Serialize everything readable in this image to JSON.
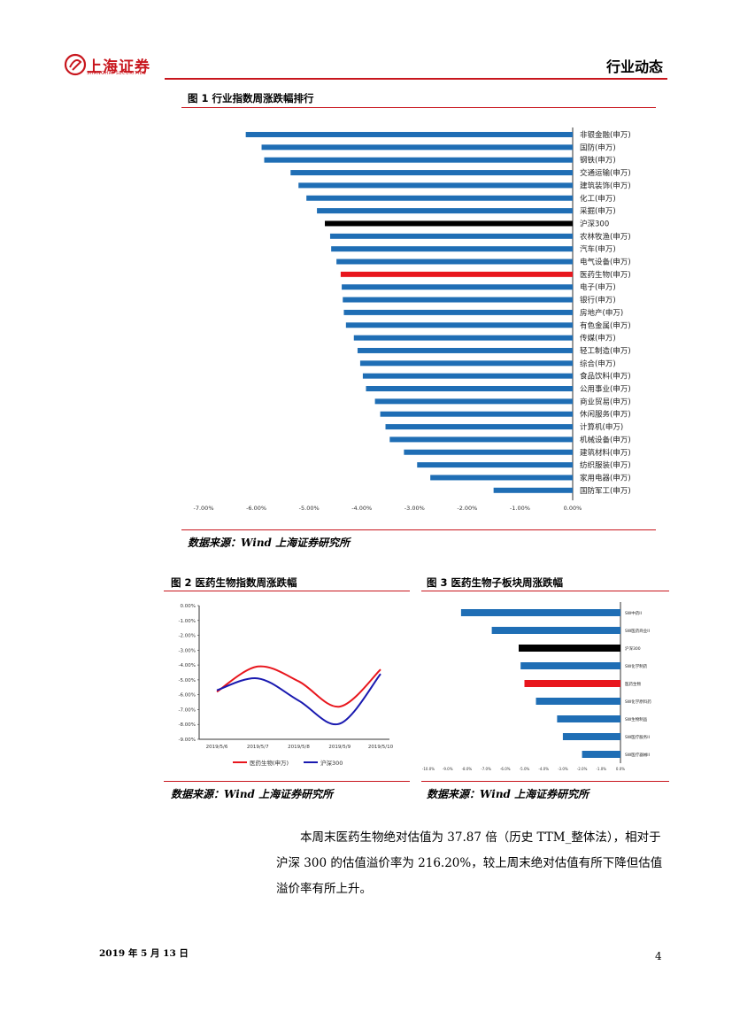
{
  "header": {
    "logo_cn": "上海证券",
    "logo_en": "SHANGHAI SECURITIES",
    "title": "行业动态"
  },
  "colors": {
    "accent": "#c8161d",
    "bar_blue": "#1f6eb5",
    "highlight_red": "#e8161d",
    "black": "#000000",
    "line_navy": "#1a1ab0"
  },
  "figure1": {
    "title": "图 1 行业指数周涨跌幅排行",
    "source": "数据来源：Wind  上海证券研究所"
  },
  "figure2": {
    "title": "图 2 医药生物指数周涨跌幅",
    "source": "数据来源：Wind 上海证券研究所"
  },
  "figure3": {
    "title": "图 3 医药生物子板块周涨跌幅",
    "source": "数据来源：Wind 上海证券研究所"
  },
  "body": {
    "paragraph": "本周末医药生物绝对估值为 37.87 倍（历史 TTM_整体法），相对于沪深 300 的估值溢价率为 216.20%，较上周末绝对估值有所下降但估值溢价率有所上升。"
  },
  "footer": {
    "date": "2019 年 5 月 13 日",
    "page": "4"
  },
  "chart_data": [
    {
      "type": "bar",
      "orientation": "horizontal",
      "title": "图 1 行业指数周涨跌幅排行",
      "categories": [
        "非银金融(申万)",
        "国防(申万)",
        "钢铁(申万)",
        "交通运输(申万)",
        "建筑装饰(申万)",
        "化工(申万)",
        "采掘(申万)",
        "沪深300",
        "农林牧渔(申万)",
        "汽车(申万)",
        "电气设备(申万)",
        "医药生物(申万)",
        "电子(申万)",
        "银行(申万)",
        "房地产(申万)",
        "有色金属(申万)",
        "传媒(申万)",
        "轻工制造(申万)",
        "综合(申万)",
        "食品饮料(申万)",
        "公用事业(申万)",
        "商业贸易(申万)",
        "休闲服务(申万)",
        "计算机(申万)",
        "机械设备(申万)",
        "建筑材料(申万)",
        "纺织服装(申万)",
        "家用电器(申万)",
        "国防军工(申万)"
      ],
      "values": [
        -6.2,
        -5.9,
        -5.85,
        -5.35,
        -5.2,
        -5.05,
        -4.85,
        -4.7,
        -4.6,
        -4.58,
        -4.48,
        -4.4,
        -4.38,
        -4.36,
        -4.34,
        -4.3,
        -4.15,
        -4.08,
        -4.03,
        -3.98,
        -3.92,
        -3.75,
        -3.65,
        -3.55,
        -3.47,
        -3.2,
        -2.95,
        -2.7,
        -1.5
      ],
      "highlight": {
        "沪深300": "black",
        "医药生物(申万)": "red"
      },
      "xlim": [
        -7,
        0
      ],
      "xticks": [
        "-7.00%",
        "-6.00%",
        "-5.00%",
        "-4.00%",
        "-3.00%",
        "-2.00%",
        "-1.00%",
        "0.00%"
      ]
    },
    {
      "type": "line",
      "title": "图 2 医药生物指数周涨跌幅",
      "x": [
        "2019/5/6",
        "2019/5/7",
        "2019/5/8",
        "2019/5/9",
        "2019/5/10"
      ],
      "yticks": [
        "0.00%",
        "-1.00%",
        "-2.00%",
        "-3.00%",
        "-4.00%",
        "-5.00%",
        "-6.00%",
        "-7.00%",
        "-8.00%",
        "-9.00%"
      ],
      "ylim": [
        -9,
        0
      ],
      "series": [
        {
          "name": "医药生物(申万)",
          "color": "red",
          "values": [
            -5.8,
            -4.1,
            -5.1,
            -6.8,
            -4.3
          ]
        },
        {
          "name": "沪深300",
          "color": "navy",
          "values": [
            -5.7,
            -4.9,
            -6.4,
            -7.95,
            -4.6
          ]
        }
      ]
    },
    {
      "type": "bar",
      "orientation": "horizontal",
      "title": "图 3 医药生物子板块周涨跌幅",
      "categories": [
        "SW中药II",
        "SW医药商业II",
        "沪深300",
        "SW化学制药",
        "医药生物",
        "SW化学原料药",
        "SW生物制品",
        "SW医疗服务II",
        "SW医疗器械II"
      ],
      "values": [
        -8.3,
        -6.7,
        -5.3,
        -5.2,
        -5.0,
        -4.4,
        -3.3,
        -3.0,
        -2.0
      ],
      "highlight": {
        "沪深300": "black",
        "医药生物": "red"
      },
      "xlim": [
        -10,
        0
      ],
      "xticks": [
        "-10.0%",
        "-9.0%",
        "-8.0%",
        "-7.0%",
        "-6.0%",
        "-5.0%",
        "-4.0%",
        "-3.0%",
        "-2.0%",
        "-1.0%",
        "0.0%"
      ]
    }
  ]
}
